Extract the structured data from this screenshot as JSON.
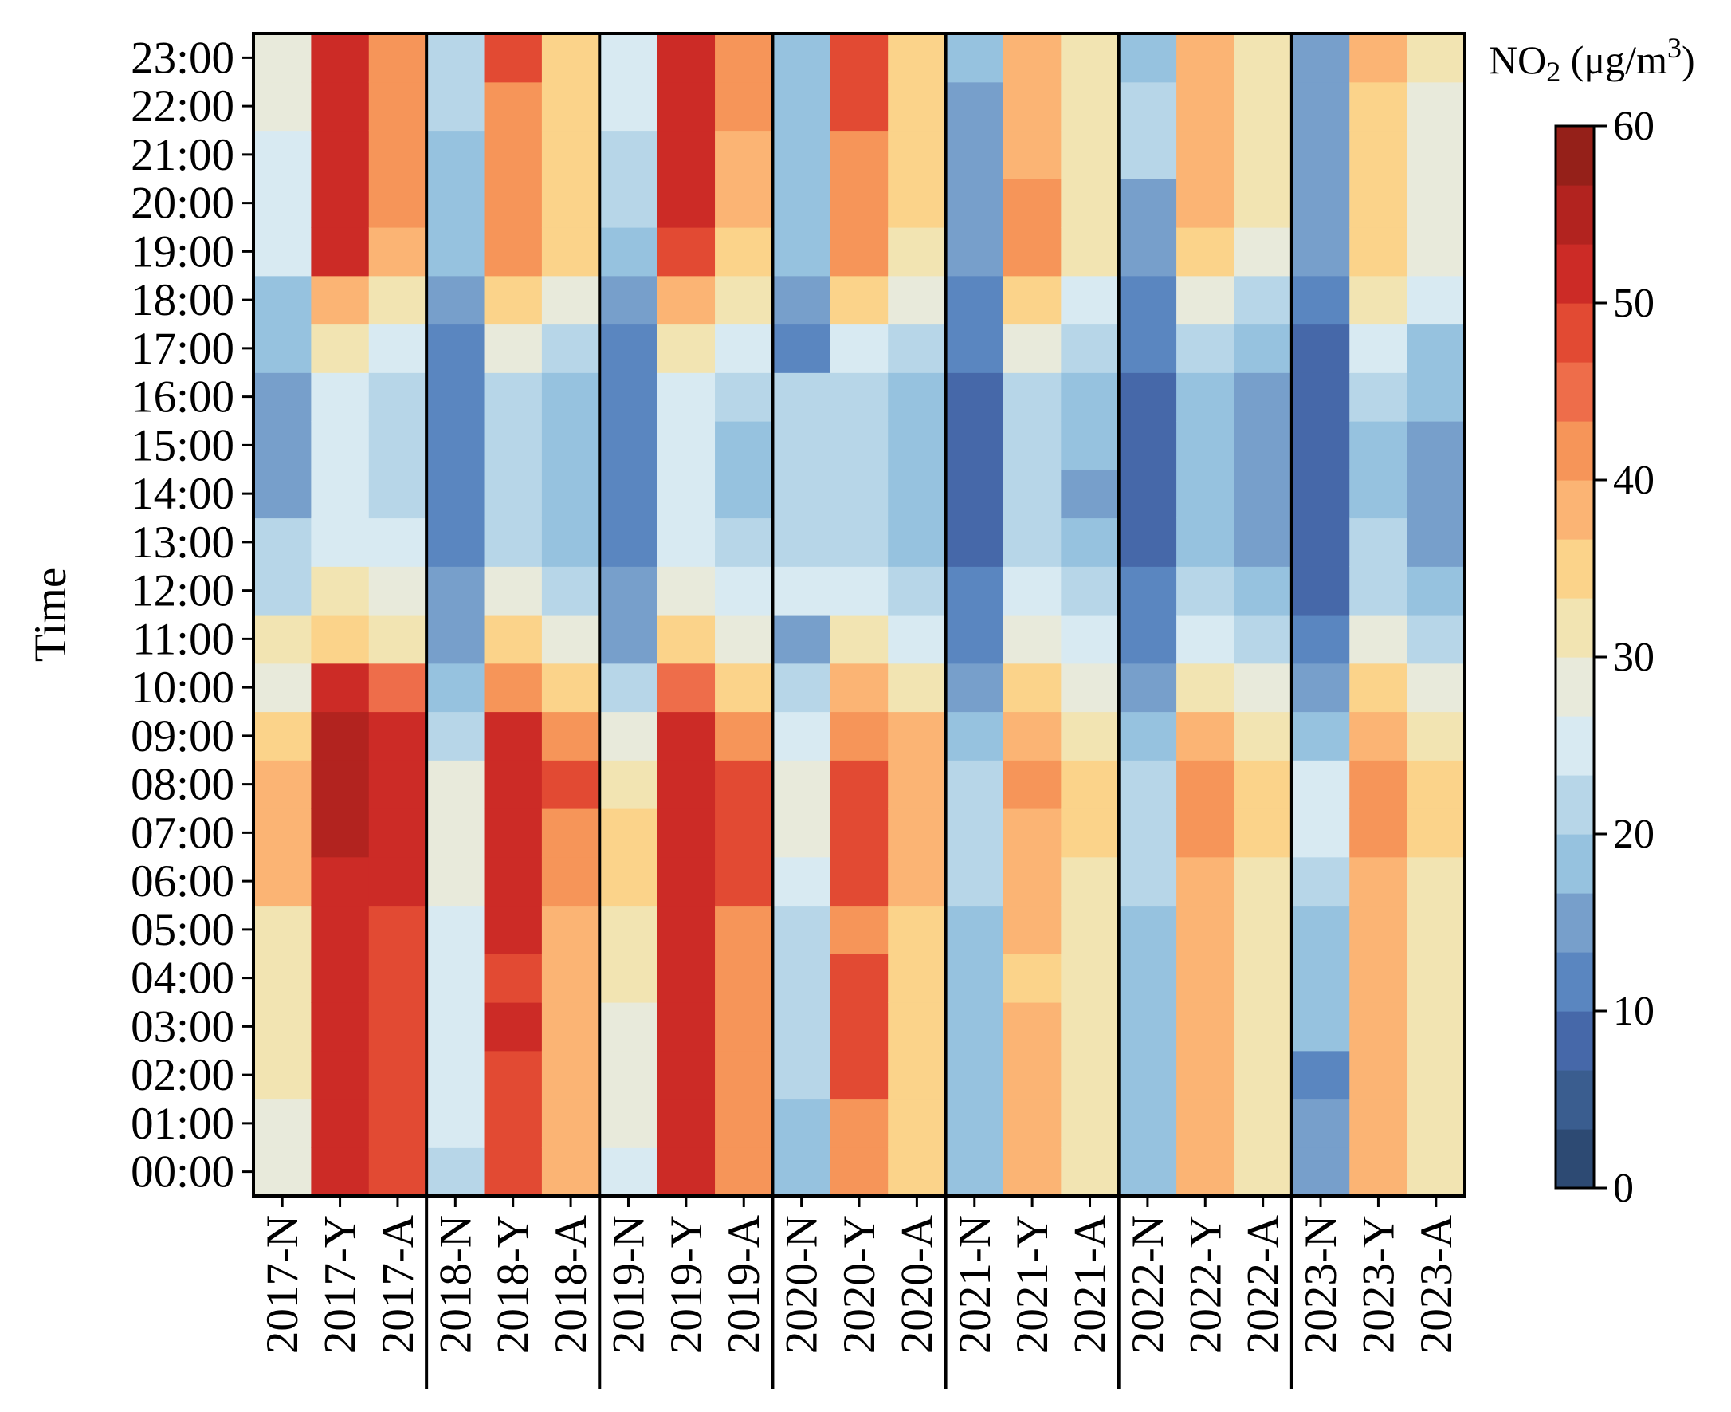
{
  "chart_data": {
    "type": "heatmap",
    "ylabel": "Time",
    "colorbar": {
      "title": "NO",
      "title_subscript": "2",
      "title_unit_prefix": " (μg/m",
      "title_unit_superscript": "3",
      "title_unit_suffix": ")",
      "range": [
        0,
        60
      ],
      "ticks": [
        "0",
        "10",
        "20",
        "30",
        "40",
        "50",
        "60"
      ],
      "bins": 18,
      "colors": [
        "#2d4a73",
        "#3a5d8f",
        "#4668a9",
        "#5a86c0",
        "#779fcb",
        "#96c2df",
        "#b7d6e8",
        "#d8eaf2",
        "#e8eadb",
        "#f2e4b2",
        "#fbd38a",
        "#fbb474",
        "#f69559",
        "#ee6d4a",
        "#e24a33",
        "#cc2b26",
        "#b2231f",
        "#952019"
      ]
    },
    "hours": [
      "00:00",
      "01:00",
      "02:00",
      "03:00",
      "04:00",
      "05:00",
      "06:00",
      "07:00",
      "08:00",
      "09:00",
      "10:00",
      "11:00",
      "12:00",
      "13:00",
      "14:00",
      "15:00",
      "16:00",
      "17:00",
      "18:00",
      "19:00",
      "20:00",
      "21:00",
      "22:00",
      "23:00"
    ],
    "columns": [
      "2017-N",
      "2017-Y",
      "2017-A",
      "2018-N",
      "2018-Y",
      "2018-A",
      "2019-N",
      "2019-Y",
      "2019-A",
      "2020-N",
      "2020-Y",
      "2020-A",
      "2021-N",
      "2021-Y",
      "2021-A",
      "2022-N",
      "2022-Y",
      "2022-A",
      "2023-N",
      "2023-Y",
      "2023-A"
    ],
    "year_groups": [
      "2017",
      "2018",
      "2019",
      "2020",
      "2021",
      "2022",
      "2023"
    ],
    "values": [
      [
        28,
        28,
        31,
        32,
        33,
        33,
        37,
        38,
        38,
        34,
        28,
        33,
        22,
        22,
        16,
        16,
        16,
        18,
        18,
        24,
        24,
        24,
        28,
        28
      ],
      [
        52,
        52,
        52,
        52,
        52,
        52,
        52,
        55,
        55,
        55,
        50,
        34,
        31,
        24,
        24,
        24,
        24,
        31,
        37,
        50,
        50,
        50,
        50,
        50
      ],
      [
        47,
        47,
        47,
        47,
        47,
        47,
        50,
        50,
        52,
        50,
        44,
        32,
        29,
        24,
        22,
        22,
        22,
        24,
        31,
        38,
        41,
        41,
        41,
        41
      ],
      [
        22,
        24,
        24,
        24,
        24,
        24,
        29,
        29,
        29,
        22,
        18,
        15,
        15,
        11,
        11,
        11,
        11,
        11,
        15,
        18,
        18,
        18,
        22,
        22
      ],
      [
        47,
        47,
        47,
        50,
        47,
        50,
        50,
        50,
        52,
        50,
        41,
        34,
        29,
        22,
        22,
        22,
        22,
        29,
        34,
        41,
        41,
        41,
        41,
        47
      ],
      [
        38,
        38,
        38,
        38,
        38,
        38,
        41,
        41,
        47,
        41,
        34,
        29,
        22,
        18,
        18,
        18,
        18,
        22,
        29,
        34,
        34,
        34,
        34,
        34
      ],
      [
        24,
        29,
        29,
        29,
        31,
        31,
        34,
        34,
        31,
        28,
        22,
        15,
        15,
        11,
        11,
        11,
        11,
        11,
        15,
        18,
        22,
        22,
        24,
        24
      ],
      [
        50,
        50,
        50,
        50,
        50,
        50,
        50,
        52,
        52,
        50,
        44,
        34,
        29,
        24,
        24,
        24,
        24,
        31,
        38,
        47,
        50,
        50,
        50,
        50
      ],
      [
        41,
        41,
        41,
        41,
        41,
        41,
        47,
        47,
        47,
        41,
        34,
        29,
        24,
        22,
        18,
        18,
        22,
        24,
        31,
        34,
        38,
        38,
        41,
        41
      ],
      [
        18,
        18,
        22,
        22,
        22,
        22,
        24,
        28,
        28,
        24,
        22,
        15,
        24,
        22,
        22,
        22,
        22,
        11,
        15,
        18,
        18,
        18,
        18,
        18
      ],
      [
        41,
        41,
        47,
        47,
        47,
        41,
        47,
        47,
        47,
        41,
        38,
        31,
        24,
        22,
        22,
        22,
        22,
        24,
        34,
        41,
        41,
        41,
        47,
        47
      ],
      [
        34,
        34,
        34,
        34,
        34,
        34,
        38,
        38,
        38,
        38,
        31,
        24,
        22,
        18,
        18,
        18,
        18,
        22,
        28,
        31,
        34,
        34,
        34,
        34
      ],
      [
        18,
        18,
        18,
        18,
        18,
        18,
        22,
        22,
        22,
        18,
        15,
        11,
        11,
        8,
        8,
        8,
        8,
        11,
        11,
        15,
        15,
        15,
        15,
        18
      ],
      [
        38,
        38,
        38,
        38,
        34,
        38,
        38,
        38,
        41,
        38,
        34,
        28,
        24,
        22,
        22,
        22,
        22,
        28,
        34,
        41,
        41,
        38,
        38,
        38
      ],
      [
        31,
        31,
        31,
        31,
        31,
        31,
        31,
        34,
        34,
        31,
        28,
        24,
        22,
        18,
        15,
        18,
        18,
        22,
        24,
        31,
        31,
        31,
        31,
        31
      ],
      [
        18,
        18,
        18,
        18,
        18,
        18,
        22,
        22,
        22,
        18,
        15,
        11,
        11,
        8,
        8,
        8,
        8,
        11,
        11,
        15,
        15,
        22,
        22,
        18
      ],
      [
        38,
        38,
        38,
        38,
        38,
        38,
        38,
        41,
        41,
        38,
        31,
        24,
        22,
        18,
        18,
        18,
        18,
        22,
        28,
        34,
        38,
        38,
        38,
        38
      ],
      [
        31,
        31,
        31,
        31,
        31,
        31,
        31,
        34,
        34,
        31,
        28,
        22,
        18,
        15,
        15,
        15,
        15,
        18,
        22,
        28,
        31,
        31,
        31,
        31
      ],
      [
        15,
        15,
        11,
        18,
        18,
        18,
        22,
        24,
        24,
        18,
        15,
        11,
        8,
        8,
        8,
        8,
        8,
        8,
        11,
        15,
        15,
        15,
        15,
        15
      ],
      [
        38,
        38,
        38,
        38,
        38,
        38,
        38,
        41,
        41,
        38,
        34,
        29,
        22,
        22,
        18,
        18,
        22,
        24,
        31,
        34,
        34,
        34,
        34,
        38
      ],
      [
        31,
        31,
        31,
        31,
        31,
        31,
        31,
        34,
        34,
        31,
        28,
        22,
        18,
        15,
        15,
        15,
        18,
        18,
        24,
        28,
        28,
        28,
        28,
        31
      ]
    ]
  }
}
